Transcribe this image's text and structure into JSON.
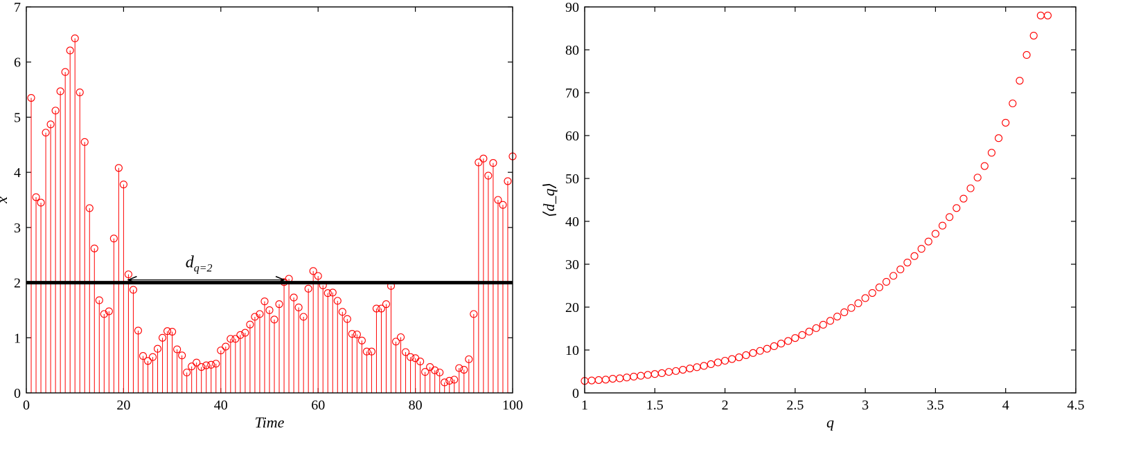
{
  "chart_data": [
    {
      "type": "stem",
      "xlabel": "Time",
      "ylabel": "x",
      "xlim": [
        0,
        100
      ],
      "ylim": [
        0,
        7
      ],
      "xticks": [
        0,
        20,
        40,
        60,
        80,
        100
      ],
      "yticks": [
        0,
        1,
        2,
        3,
        4,
        5,
        6,
        7
      ],
      "threshold": 2,
      "annotation": {
        "text": "d",
        "subscript": "q=2",
        "from_x": 21,
        "to_x": 53,
        "y": 2.15
      },
      "color": "#ff0000",
      "x": [
        1,
        2,
        3,
        4,
        5,
        6,
        7,
        8,
        9,
        10,
        11,
        12,
        13,
        14,
        15,
        16,
        17,
        18,
        19,
        20,
        21,
        22,
        23,
        24,
        25,
        26,
        27,
        28,
        29,
        30,
        31,
        32,
        33,
        34,
        35,
        36,
        37,
        38,
        39,
        40,
        41,
        42,
        43,
        44,
        45,
        46,
        47,
        48,
        49,
        50,
        51,
        52,
        53,
        54,
        55,
        56,
        57,
        58,
        59,
        60,
        61,
        62,
        63,
        64,
        65,
        66,
        67,
        68,
        69,
        70,
        71,
        72,
        73,
        74,
        75,
        76,
        77,
        78,
        79,
        80,
        81,
        82,
        83,
        84,
        85,
        86,
        87,
        88,
        89,
        90,
        91,
        92,
        93,
        94,
        95,
        96,
        97,
        98,
        99,
        100
      ],
      "values": [
        5.35,
        3.55,
        3.45,
        4.72,
        4.87,
        5.12,
        5.47,
        5.82,
        6.21,
        6.43,
        5.45,
        4.55,
        3.35,
        2.62,
        1.68,
        1.43,
        1.48,
        2.8,
        4.08,
        3.78,
        2.15,
        1.87,
        1.13,
        0.67,
        0.58,
        0.65,
        0.8,
        1.0,
        1.12,
        1.11,
        0.79,
        0.68,
        0.37,
        0.48,
        0.55,
        0.47,
        0.5,
        0.51,
        0.53,
        0.77,
        0.84,
        0.98,
        0.98,
        1.05,
        1.09,
        1.24,
        1.38,
        1.43,
        1.66,
        1.5,
        1.33,
        1.61,
        2.01,
        2.07,
        1.73,
        1.55,
        1.38,
        1.89,
        2.21,
        2.12,
        1.95,
        1.81,
        1.82,
        1.67,
        1.47,
        1.34,
        1.07,
        1.06,
        0.95,
        0.75,
        0.75,
        1.53,
        1.53,
        1.61,
        1.94,
        0.93,
        1.01,
        0.74,
        0.65,
        0.63,
        0.57,
        0.38,
        0.47,
        0.41,
        0.37,
        0.19,
        0.22,
        0.24,
        0.45,
        0.42,
        0.61,
        1.43,
        4.18,
        4.25,
        3.94,
        4.17,
        3.5,
        3.41,
        3.84,
        4.29
      ]
    },
    {
      "type": "scatter",
      "xlabel": "q",
      "ylabel": "⟨d_q⟩",
      "xlim": [
        1,
        4.5
      ],
      "ylim": [
        0,
        90
      ],
      "xticks": [
        "1",
        "1.5",
        "2",
        "2.5",
        "3",
        "3.5",
        "4",
        "4.5"
      ],
      "yticks": [
        0,
        10,
        20,
        30,
        40,
        50,
        60,
        70,
        80,
        90
      ],
      "color": "#ff0000",
      "x": [
        1.0,
        1.05,
        1.1,
        1.15,
        1.2,
        1.25,
        1.3,
        1.35,
        1.4,
        1.45,
        1.5,
        1.55,
        1.6,
        1.65,
        1.7,
        1.75,
        1.8,
        1.85,
        1.9,
        1.95,
        2.0,
        2.05,
        2.1,
        2.15,
        2.2,
        2.25,
        2.3,
        2.35,
        2.4,
        2.45,
        2.5,
        2.55,
        2.6,
        2.65,
        2.7,
        2.75,
        2.8,
        2.85,
        2.9,
        2.95,
        3.0,
        3.05,
        3.1,
        3.15,
        3.2,
        3.25,
        3.3,
        3.35,
        3.4,
        3.45,
        3.5,
        3.55,
        3.6,
        3.65,
        3.7,
        3.75,
        3.8,
        3.85,
        3.9,
        3.95,
        4.0,
        4.05,
        4.1,
        4.15,
        4.2,
        4.25,
        4.3
      ],
      "values": [
        2.8,
        2.9,
        3.0,
        3.1,
        3.3,
        3.4,
        3.6,
        3.8,
        4.0,
        4.2,
        4.4,
        4.6,
        4.9,
        5.1,
        5.4,
        5.7,
        6.0,
        6.3,
        6.7,
        7.1,
        7.5,
        7.9,
        8.3,
        8.8,
        9.3,
        9.8,
        10.3,
        10.9,
        11.5,
        12.1,
        12.8,
        13.5,
        14.3,
        15.1,
        15.9,
        16.8,
        17.8,
        18.8,
        19.8,
        20.9,
        22.1,
        23.3,
        24.6,
        25.9,
        27.3,
        28.8,
        30.4,
        31.9,
        33.6,
        35.3,
        37.1,
        39.0,
        41.0,
        43.1,
        45.3,
        47.7,
        50.2,
        52.9,
        56.0,
        59.4,
        63.0,
        67.5,
        72.8,
        78.8,
        83.3,
        88.0,
        88.0
      ]
    }
  ]
}
